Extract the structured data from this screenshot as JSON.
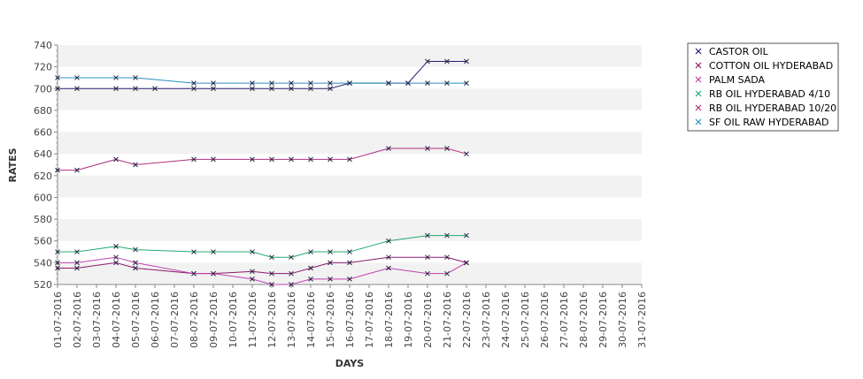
{
  "chart_data": {
    "type": "line",
    "xlabel": "DAYS",
    "ylabel": "RATES",
    "ylim": [
      520,
      740
    ],
    "yticks": [
      520,
      540,
      560,
      580,
      600,
      620,
      640,
      660,
      680,
      700,
      720,
      740
    ],
    "categories": [
      "01-07-2016",
      "02-07-2016",
      "03-07-2016",
      "04-07-2016",
      "05-07-2016",
      "06-07-2016",
      "07-07-2016",
      "08-07-2016",
      "09-07-2016",
      "10-07-2016",
      "11-07-2016",
      "12-07-2016",
      "13-07-2016",
      "14-07-2016",
      "15-07-2016",
      "16-07-2016",
      "17-07-2016",
      "18-07-2016",
      "19-07-2016",
      "20-07-2016",
      "21-07-2016",
      "22-07-2016",
      "23-07-2016",
      "24-07-2016",
      "25-07-2016",
      "26-07-2016",
      "27-07-2016",
      "28-07-2016",
      "29-07-2016",
      "30-07-2016",
      "31-07-2016"
    ],
    "grid": "alternating horizontal bands",
    "legend_position": "right",
    "series": [
      {
        "name": "CASTOR OIL",
        "color": "#1f1f6b",
        "points": [
          [
            "01-07-2016",
            700
          ],
          [
            "02-07-2016",
            700
          ],
          [
            "04-07-2016",
            700
          ],
          [
            "05-07-2016",
            700
          ],
          [
            "06-07-2016",
            700
          ],
          [
            "08-07-2016",
            700
          ],
          [
            "09-07-2016",
            700
          ],
          [
            "11-07-2016",
            700
          ],
          [
            "12-07-2016",
            700
          ],
          [
            "13-07-2016",
            700
          ],
          [
            "14-07-2016",
            700
          ],
          [
            "15-07-2016",
            700
          ],
          [
            "16-07-2016",
            705
          ],
          [
            "18-07-2016",
            705
          ],
          [
            "19-07-2016",
            705
          ],
          [
            "20-07-2016",
            725
          ],
          [
            "21-07-2016",
            725
          ],
          [
            "22-07-2016",
            725
          ]
        ]
      },
      {
        "name": "COTTON OIL HYDERABAD",
        "color": "#8b1a6b",
        "points": [
          [
            "01-07-2016",
            535
          ],
          [
            "02-07-2016",
            535
          ],
          [
            "04-07-2016",
            540
          ],
          [
            "05-07-2016",
            535
          ],
          [
            "08-07-2016",
            530
          ],
          [
            "09-07-2016",
            530
          ],
          [
            "11-07-2016",
            532
          ],
          [
            "12-07-2016",
            530
          ],
          [
            "13-07-2016",
            530
          ],
          [
            "14-07-2016",
            535
          ],
          [
            "15-07-2016",
            540
          ],
          [
            "16-07-2016",
            540
          ],
          [
            "18-07-2016",
            545
          ],
          [
            "20-07-2016",
            545
          ],
          [
            "21-07-2016",
            545
          ],
          [
            "22-07-2016",
            540
          ]
        ]
      },
      {
        "name": "PALM SADA",
        "color": "#c040b0",
        "points": [
          [
            "01-07-2016",
            540
          ],
          [
            "02-07-2016",
            540
          ],
          [
            "04-07-2016",
            545
          ],
          [
            "05-07-2016",
            540
          ],
          [
            "08-07-2016",
            530
          ],
          [
            "09-07-2016",
            530
          ],
          [
            "11-07-2016",
            525
          ],
          [
            "12-07-2016",
            520
          ],
          [
            "13-07-2016",
            520
          ],
          [
            "14-07-2016",
            525
          ],
          [
            "15-07-2016",
            525
          ],
          [
            "16-07-2016",
            525
          ],
          [
            "18-07-2016",
            535
          ],
          [
            "20-07-2016",
            530
          ],
          [
            "21-07-2016",
            530
          ],
          [
            "22-07-2016",
            540
          ]
        ]
      },
      {
        "name": "RB OIL HYDERABAD  4/10",
        "color": "#1faa6e",
        "points": [
          [
            "01-07-2016",
            550
          ],
          [
            "02-07-2016",
            550
          ],
          [
            "04-07-2016",
            555
          ],
          [
            "05-07-2016",
            552
          ],
          [
            "08-07-2016",
            550
          ],
          [
            "09-07-2016",
            550
          ],
          [
            "11-07-2016",
            550
          ],
          [
            "12-07-2016",
            545
          ],
          [
            "13-07-2016",
            545
          ],
          [
            "14-07-2016",
            550
          ],
          [
            "15-07-2016",
            550
          ],
          [
            "16-07-2016",
            550
          ],
          [
            "18-07-2016",
            560
          ],
          [
            "20-07-2016",
            565
          ],
          [
            "21-07-2016",
            565
          ],
          [
            "22-07-2016",
            565
          ]
        ]
      },
      {
        "name": "RB OIL HYDERABAD 10/20",
        "color": "#b03080",
        "points": [
          [
            "01-07-2016",
            625
          ],
          [
            "02-07-2016",
            625
          ],
          [
            "04-07-2016",
            635
          ],
          [
            "05-07-2016",
            630
          ],
          [
            "08-07-2016",
            635
          ],
          [
            "09-07-2016",
            635
          ],
          [
            "11-07-2016",
            635
          ],
          [
            "12-07-2016",
            635
          ],
          [
            "13-07-2016",
            635
          ],
          [
            "14-07-2016",
            635
          ],
          [
            "15-07-2016",
            635
          ],
          [
            "16-07-2016",
            635
          ],
          [
            "18-07-2016",
            645
          ],
          [
            "20-07-2016",
            645
          ],
          [
            "21-07-2016",
            645
          ],
          [
            "22-07-2016",
            640
          ]
        ]
      },
      {
        "name": "SF OIL RAW HYDERABAD",
        "color": "#2a8fc0",
        "points": [
          [
            "01-07-2016",
            710
          ],
          [
            "02-07-2016",
            710
          ],
          [
            "04-07-2016",
            710
          ],
          [
            "05-07-2016",
            710
          ],
          [
            "08-07-2016",
            705
          ],
          [
            "09-07-2016",
            705
          ],
          [
            "11-07-2016",
            705
          ],
          [
            "12-07-2016",
            705
          ],
          [
            "13-07-2016",
            705
          ],
          [
            "14-07-2016",
            705
          ],
          [
            "15-07-2016",
            705
          ],
          [
            "16-07-2016",
            705
          ],
          [
            "18-07-2016",
            705
          ],
          [
            "19-07-2016",
            705
          ],
          [
            "20-07-2016",
            705
          ],
          [
            "21-07-2016",
            705
          ],
          [
            "22-07-2016",
            705
          ]
        ]
      }
    ]
  }
}
